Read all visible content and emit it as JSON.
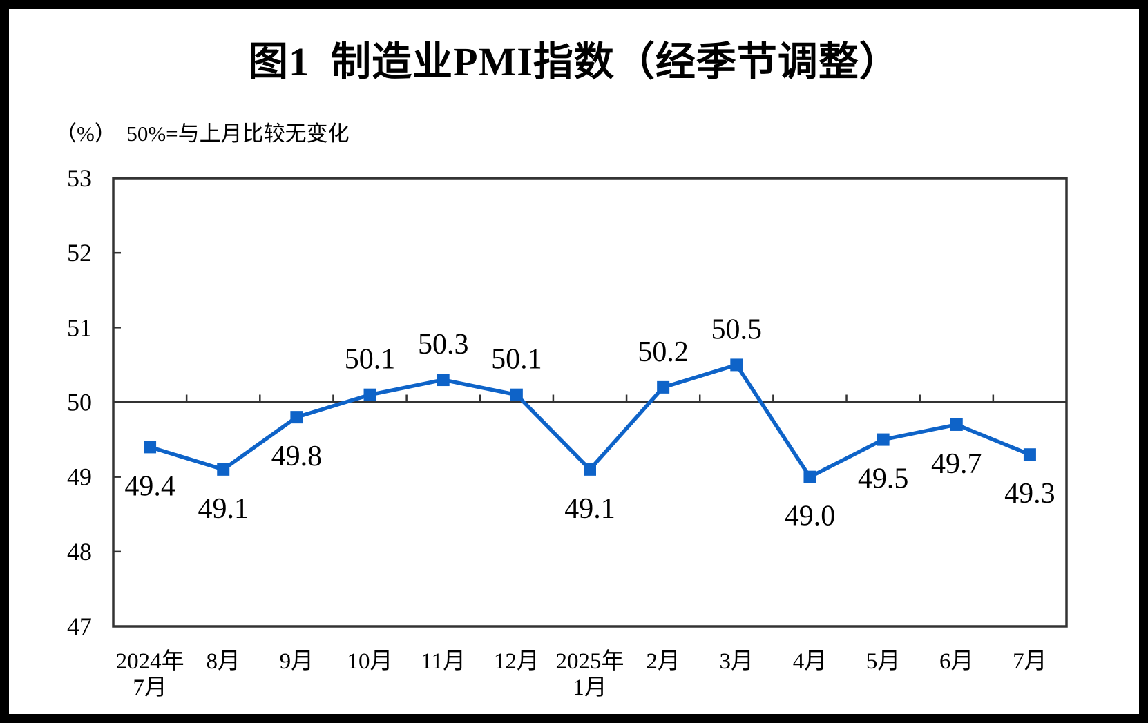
{
  "chart_data": {
    "type": "line",
    "title": "图1  制造业PMI指数（经季节调整）",
    "unit_note": "（%）  50%=与上月比较无变化",
    "categories": [
      "2024年\n7月",
      "8月",
      "9月",
      "10月",
      "11月",
      "12月",
      "2025年\n1月",
      "2月",
      "3月",
      "4月",
      "5月",
      "6月",
      "7月"
    ],
    "series": [
      {
        "name": "制造业PMI",
        "values": [
          49.4,
          49.1,
          49.8,
          50.1,
          50.3,
          50.1,
          49.1,
          50.2,
          50.5,
          49.0,
          49.5,
          49.7,
          49.3
        ],
        "data_labels": [
          "49.4",
          "49.1",
          "49.8",
          "50.1",
          "50.3",
          "50.1",
          "49.1",
          "50.2",
          "50.5",
          "49.0",
          "49.5",
          "49.7",
          "49.3"
        ],
        "label_side": [
          "below",
          "below",
          "below",
          "above",
          "above",
          "above",
          "below",
          "above",
          "above",
          "below",
          "below",
          "below",
          "below"
        ]
      }
    ],
    "xlabel": "",
    "ylabel": "%",
    "ylim": [
      47,
      53
    ],
    "y_ticks": [
      47,
      48,
      49,
      50,
      51,
      52,
      53
    ],
    "baseline": 50,
    "grid": false,
    "legend": false,
    "marker": "square",
    "colors": {
      "line": "#0E63C8",
      "marker": "#0E63C8",
      "axis": "#333333",
      "text": "#000000",
      "background": "#ffffff",
      "outer_border": "#000000"
    }
  }
}
